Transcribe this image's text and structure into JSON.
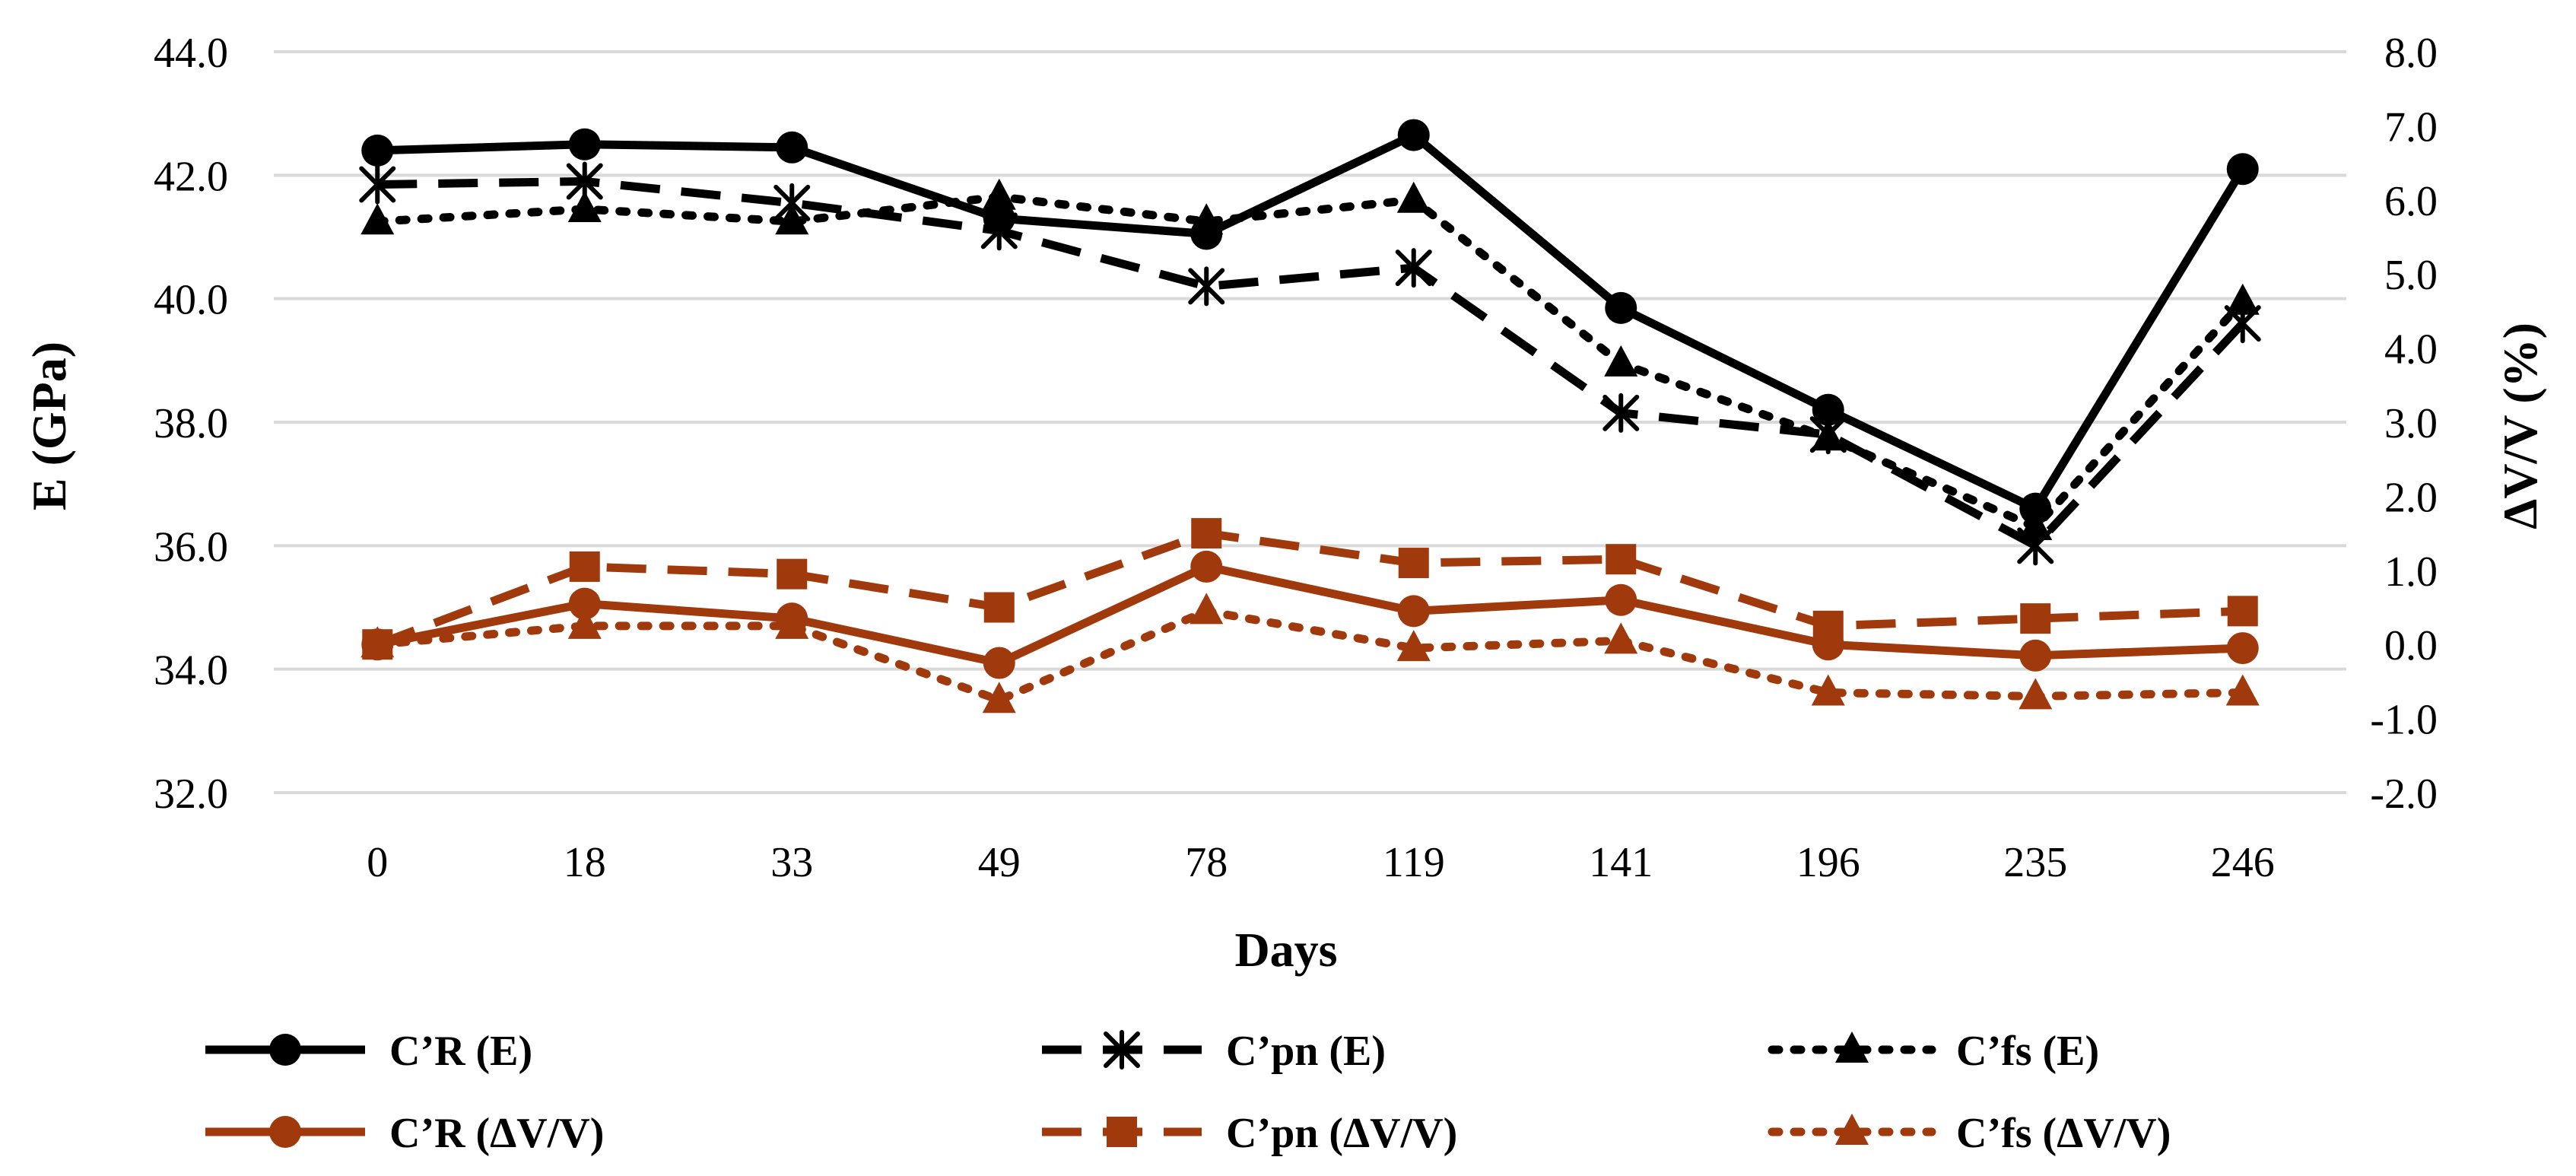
{
  "chart_data": {
    "type": "line",
    "xlabel": "Days",
    "ylabel": "E (GPa)",
    "y2label": "ΔV/V (%)",
    "categories": [
      "0",
      "18",
      "33",
      "49",
      "78",
      "119",
      "141",
      "196",
      "235",
      "246"
    ],
    "ylim": [
      32.0,
      44.0
    ],
    "y_ticks": [
      "32.0",
      "34.0",
      "36.0",
      "38.0",
      "40.0",
      "42.0",
      "44.0"
    ],
    "y2lim": [
      -2.0,
      8.0
    ],
    "y2_ticks": [
      "-2.0",
      "-1.0",
      "0.0",
      "1.0",
      "2.0",
      "3.0",
      "4.0",
      "5.0",
      "6.0",
      "7.0",
      "8.0"
    ],
    "grid": true,
    "legend_position": "bottom",
    "series": [
      {
        "name": "C’R (E)",
        "axis": "left",
        "color": "#000000",
        "dash": "solid",
        "marker": "circle",
        "values": [
          42.4,
          42.5,
          42.45,
          41.3,
          41.05,
          42.65,
          39.85,
          38.2,
          36.6,
          42.1
        ]
      },
      {
        "name": "C’pn (E)",
        "axis": "left",
        "color": "#000000",
        "dash": "dashed",
        "marker": "asterisk",
        "values": [
          41.85,
          41.9,
          41.55,
          41.1,
          40.2,
          40.5,
          38.15,
          37.8,
          36.0,
          39.6
        ]
      },
      {
        "name": "C’fs (E)",
        "axis": "left",
        "color": "#000000",
        "dash": "dotted",
        "marker": "triangle",
        "values": [
          41.25,
          41.45,
          41.25,
          41.65,
          41.25,
          41.6,
          38.95,
          37.75,
          36.3,
          39.95
        ]
      },
      {
        "name": "C’R (ΔV/V)",
        "axis": "right",
        "color": "#a0390b",
        "dash": "solid",
        "marker": "circle",
        "values": [
          0.0,
          0.55,
          0.35,
          -0.25,
          1.05,
          0.45,
          0.6,
          0.0,
          -0.15,
          -0.05
        ]
      },
      {
        "name": "C’pn (ΔV/V)",
        "axis": "right",
        "color": "#a0390b",
        "dash": "dashed",
        "marker": "square",
        "values": [
          0.0,
          1.05,
          0.95,
          0.5,
          1.5,
          1.1,
          1.15,
          0.25,
          0.35,
          0.45
        ]
      },
      {
        "name": "C’fs (ΔV/V)",
        "axis": "right",
        "color": "#a0390b",
        "dash": "dotted",
        "marker": "triangle",
        "values": [
          0.0,
          0.25,
          0.25,
          -0.75,
          0.45,
          -0.05,
          0.05,
          -0.65,
          -0.7,
          -0.65
        ]
      }
    ]
  }
}
